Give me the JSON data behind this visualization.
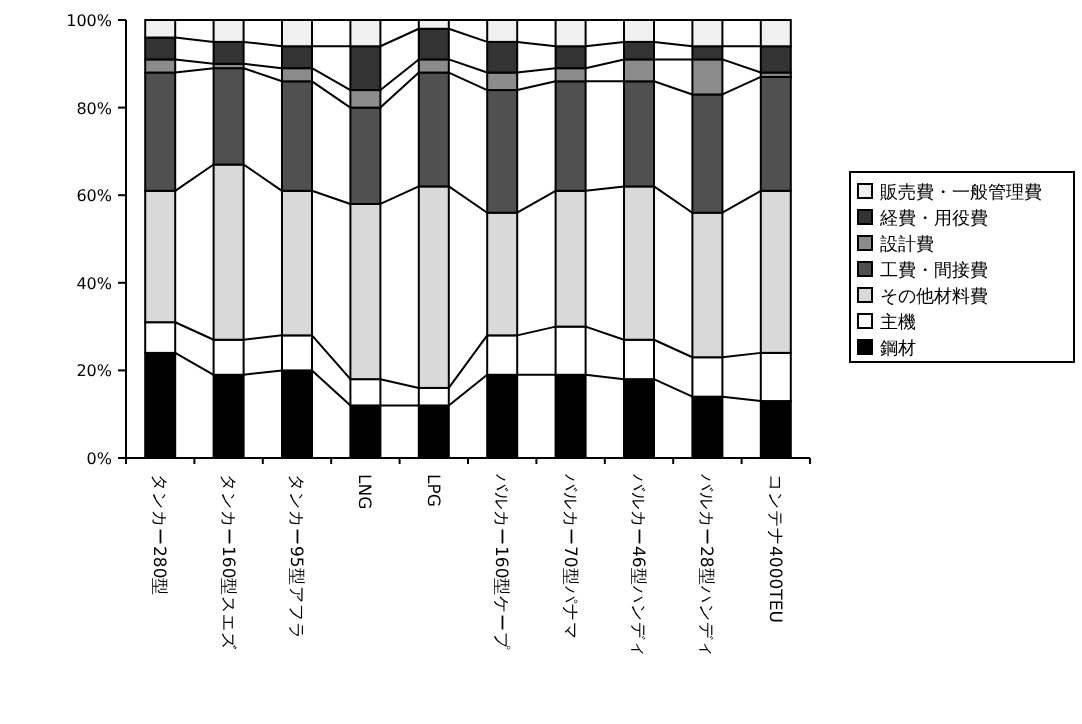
{
  "chart_data": {
    "type": "bar",
    "stacked": true,
    "legend": "right",
    "grid": false,
    "categories": [
      "タンカー280型",
      "タンカー160型スエズ",
      "タンカー95型アフラ",
      "LNG",
      "LPG",
      "バルカー160型ケープ",
      "バルカー70型パナマ",
      "バルカー46型ハンディ",
      "バルカー28型ハンディ",
      "コンテナ4000TEU"
    ],
    "ylim": [
      0,
      100
    ],
    "yticks": [
      {
        "value": 0,
        "label": "0%"
      },
      {
        "value": 20,
        "label": "20%"
      },
      {
        "value": 40,
        "label": "40%"
      },
      {
        "value": 60,
        "label": "60%"
      },
      {
        "value": 80,
        "label": "80%"
      },
      {
        "value": 100,
        "label": "100%"
      }
    ],
    "series": [
      {
        "name": "鋼材",
        "color": "#000000",
        "values": [
          24,
          19,
          20,
          12,
          12,
          19,
          19,
          18,
          14,
          13
        ]
      },
      {
        "name": "主機",
        "color": "#ffffff",
        "values": [
          7,
          8,
          8,
          6,
          4,
          9,
          11,
          9,
          9,
          11
        ]
      },
      {
        "name": "その他材料費",
        "color": "#d9d9d9",
        "values": [
          30,
          40,
          33,
          40,
          46,
          28,
          31,
          35,
          33,
          37
        ]
      },
      {
        "name": "工費・間接費",
        "color": "#505050",
        "values": [
          27,
          22,
          25,
          22,
          26,
          28,
          25,
          24,
          27,
          26
        ]
      },
      {
        "name": "設計費",
        "color": "#8c8c8c",
        "values": [
          3,
          1,
          3,
          4,
          3,
          4,
          3,
          5,
          8,
          1
        ]
      },
      {
        "name": "経費・用役費",
        "color": "#333333",
        "values": [
          5,
          5,
          5,
          10,
          7,
          7,
          5,
          4,
          3,
          6
        ]
      },
      {
        "name": "販売費・一般管理費",
        "color": "#f0f0f0",
        "values": [
          4,
          5,
          6,
          6,
          2,
          5,
          6,
          5,
          6,
          6
        ]
      }
    ]
  }
}
